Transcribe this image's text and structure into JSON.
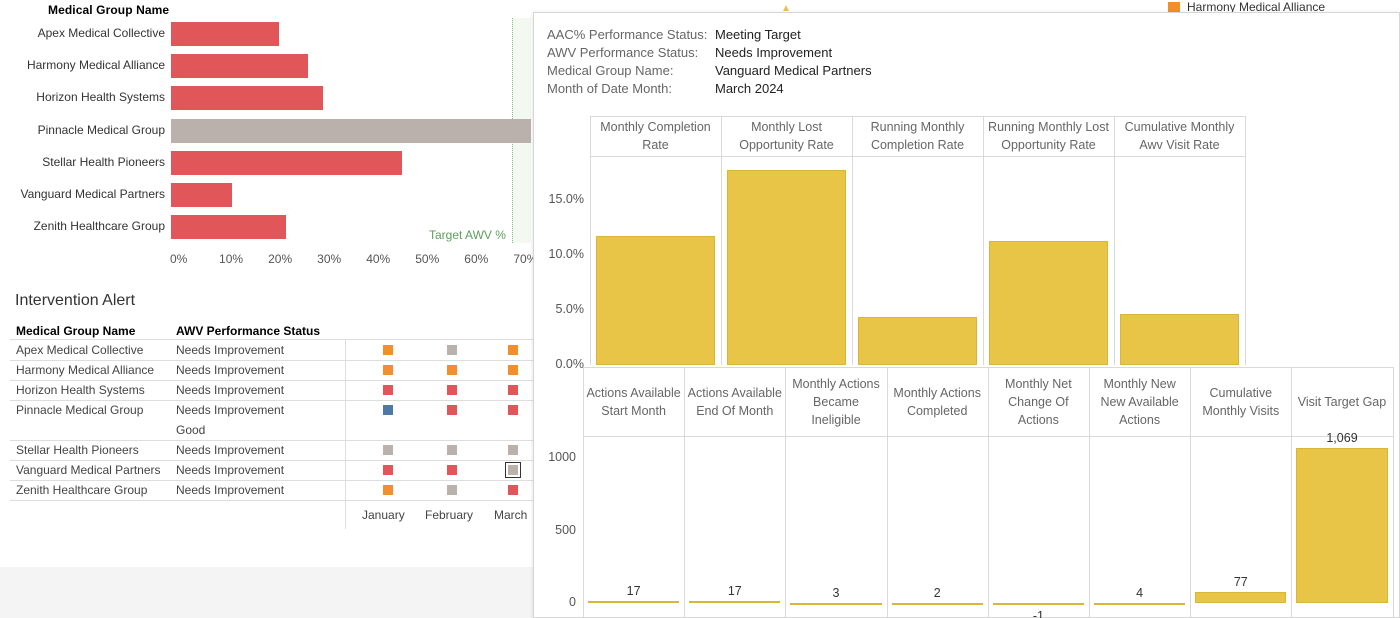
{
  "bar_chart": {
    "header": "Medical Group Name",
    "groups": [
      {
        "name": "Apex Medical Collective",
        "value": 22,
        "color": "#e15759"
      },
      {
        "name": "Harmony Medical Alliance",
        "value": 28,
        "color": "#e15759"
      },
      {
        "name": "Horizon Health Systems",
        "value": 31,
        "color": "#e15759"
      },
      {
        "name": "Pinnacle Medical Group",
        "value": 74,
        "color": "#bab0ac"
      },
      {
        "name": "Stellar Health Pioneers",
        "value": 47,
        "color": "#e15759"
      },
      {
        "name": "Vanguard Medical Partners",
        "value": 12.5,
        "color": "#e15759"
      },
      {
        "name": "Zenith Healthcare Group",
        "value": 23.5,
        "color": "#e15759"
      }
    ],
    "ticks": [
      "0%",
      "10%",
      "20%",
      "30%",
      "40%",
      "50%",
      "60%",
      "70%"
    ],
    "target_label": "Target AWV %",
    "target_value": 70
  },
  "alert": {
    "title": "Intervention Alert",
    "col_group": "Medical Group Name",
    "col_status": "AWV Performance Status",
    "months": [
      "January",
      "February",
      "March"
    ],
    "rows": [
      {
        "group": "Apex Medical Collective",
        "status": [
          "Needs Improvement"
        ],
        "cells": [
          "#f28e2b",
          "#bab0ac",
          "#f28e2b"
        ]
      },
      {
        "group": "Harmony Medical Alliance",
        "status": [
          "Needs Improvement"
        ],
        "cells": [
          "#f28e2b",
          "#f28e2b",
          "#f28e2b"
        ]
      },
      {
        "group": "Horizon Health Systems",
        "status": [
          "Needs Improvement"
        ],
        "cells": [
          "#e15759",
          "#e15759",
          "#e15759"
        ]
      },
      {
        "group": "Pinnacle Medical Group",
        "status": [
          "Needs Improvement",
          "Good"
        ],
        "cells": [
          "#4e79a7",
          "#e15759",
          "#e15759"
        ]
      },
      {
        "group": "Stellar Health Pioneers",
        "status": [
          "Needs Improvement"
        ],
        "cells": [
          "#bab0ac",
          "#bab0ac",
          "#bab0ac"
        ]
      },
      {
        "group": "Vanguard Medical Partners",
        "status": [
          "Needs Improvement"
        ],
        "cells": [
          "#e15759",
          "#e15759",
          "#bab0ac"
        ]
      },
      {
        "group": "Zenith Healthcare Group",
        "status": [
          "Needs Improvement"
        ],
        "cells": [
          "#f28e2b",
          "#bab0ac",
          "#e15759"
        ]
      }
    ]
  },
  "legend": {
    "label": "Harmony Medical Alliance",
    "color": "#f28e2b"
  },
  "tooltip": {
    "fields": [
      {
        "key": "AAC% Performance Status:",
        "value": "Meeting Target"
      },
      {
        "key": "AWV Performance Status:",
        "value": "Needs Improvement"
      },
      {
        "key": "Medical Group Name:",
        "value": "Vanguard Medical Partners"
      },
      {
        "key": "Month of Date Month:",
        "value": "March 2024"
      }
    ]
  },
  "chart_data": [
    {
      "type": "bar",
      "categories": [
        "Monthly Completion Rate",
        "Monthly Lost Opportunity Rate",
        "Running Monthly Completion Rate",
        "Running Monthly Lost Opportunity Rate",
        "Cumulative Monthly Awv Visit Rate"
      ],
      "values": [
        11.7,
        17.7,
        4.4,
        11.3,
        4.6
      ],
      "y_ticks": [
        "15.0%",
        "10.0%",
        "5.0%",
        "0.0%"
      ],
      "ylim": [
        0,
        19
      ],
      "color": "#e8c547"
    },
    {
      "type": "bar",
      "categories": [
        "Actions Available Start Month",
        "Actions Available End Of Month",
        "Monthly Actions Became Ineligible",
        "Monthly Actions Completed",
        "Monthly Net Change Of Actions",
        "Monthly New New Available Actions",
        "Cumulative Monthly Visits",
        "Visit Target Gap"
      ],
      "values": [
        17,
        17,
        3,
        2,
        -1,
        4,
        77,
        1069
      ],
      "labels": [
        "17",
        "17",
        "3",
        "2",
        "-1",
        "4",
        "77",
        "1,069"
      ],
      "y_ticks": [
        "1000",
        "500",
        "0"
      ],
      "ylim": [
        -100,
        1150
      ],
      "color": "#e8c547"
    }
  ]
}
